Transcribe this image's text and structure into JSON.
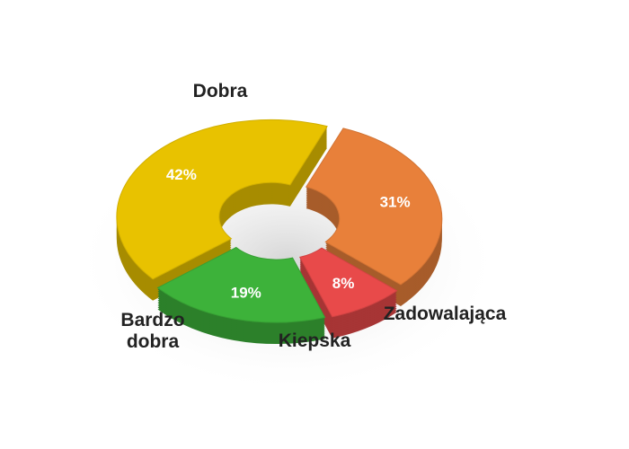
{
  "chart_data": {
    "type": "donut",
    "categories": [
      "Dobra",
      "Zadowalająca",
      "Kiepska",
      "Bardzo dobra"
    ],
    "values": [
      42,
      31,
      8,
      19
    ],
    "value_labels": [
      "42%",
      "31%",
      "8%",
      "19%"
    ],
    "colors": [
      "#e8c200",
      "#e8803a",
      "#e84a4a",
      "#3db23a"
    ]
  }
}
